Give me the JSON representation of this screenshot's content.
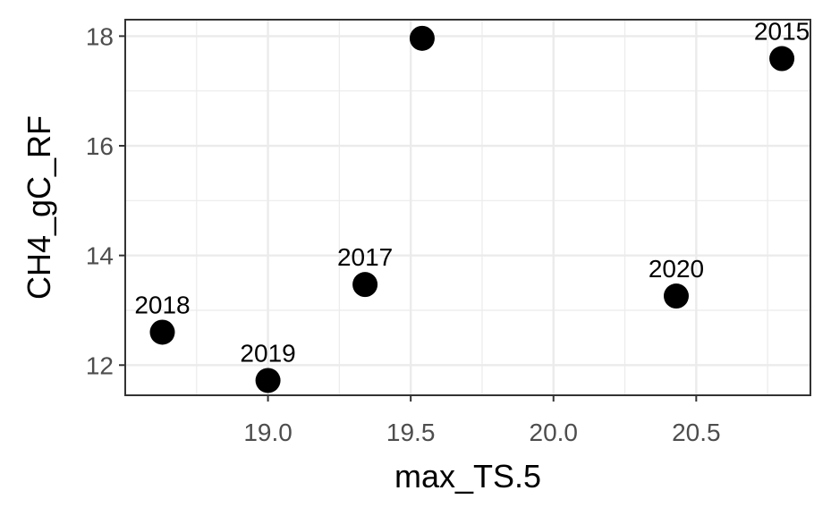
{
  "chart_data": {
    "type": "scatter",
    "xlabel": "max_TS.5",
    "ylabel": "CH4_gC_RF",
    "xlim": [
      18.5,
      20.9
    ],
    "ylim": [
      11.45,
      18.3
    ],
    "x_ticks": [
      19.0,
      19.5,
      20.0,
      20.5
    ],
    "x_tick_labels": [
      "19.0",
      "19.5",
      "20.0",
      "20.5"
    ],
    "x_minor_ticks": [
      18.75,
      19.25,
      19.75,
      20.25,
      20.75
    ],
    "y_ticks": [
      12,
      14,
      16,
      18
    ],
    "y_tick_labels": [
      "12",
      "14",
      "16",
      "18"
    ],
    "y_minor_ticks": [
      13,
      15,
      17
    ],
    "grid": true,
    "point_color": "#000000",
    "points": [
      {
        "x": 18.63,
        "y": 12.6,
        "label": "2018"
      },
      {
        "x": 19.0,
        "y": 11.72,
        "label": "2019"
      },
      {
        "x": 19.34,
        "y": 13.47,
        "label": "2017"
      },
      {
        "x": 19.54,
        "y": 17.96,
        "label": ""
      },
      {
        "x": 20.43,
        "y": 13.26,
        "label": "2020"
      },
      {
        "x": 20.8,
        "y": 17.59,
        "label": "2015"
      }
    ]
  }
}
